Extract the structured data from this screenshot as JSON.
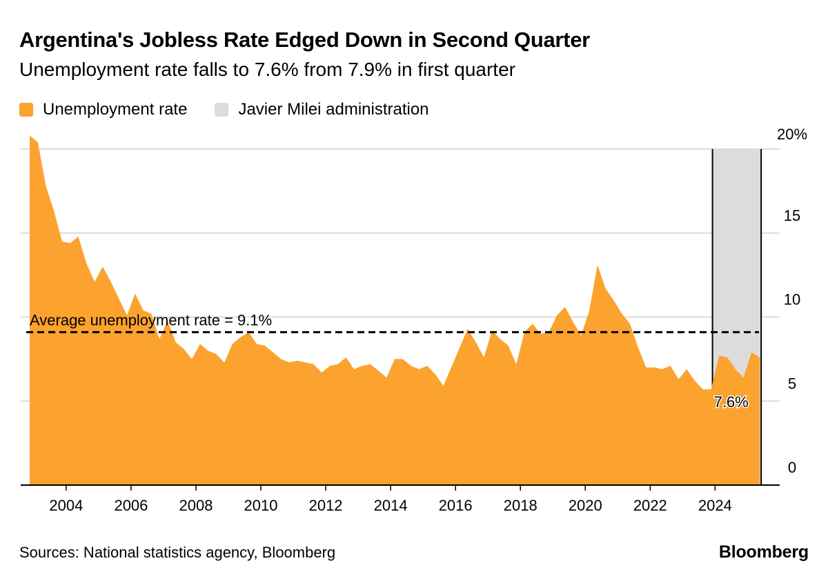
{
  "header": {
    "title": "Argentina's Jobless Rate Edged Down in Second Quarter",
    "subtitle": "Unemployment rate falls to 7.6% from 7.9% in first quarter"
  },
  "legend": {
    "series_label": "Unemployment rate",
    "shade_label": "Javier Milei administration"
  },
  "footer": {
    "source": "Sources: National statistics agency, Bloomberg",
    "brand": "Bloomberg"
  },
  "colors": {
    "series": "#fba22f",
    "shade": "#dcdcdc",
    "grid": "#cfcfcf",
    "text": "#000000"
  },
  "chart_data": {
    "type": "area",
    "title": "Argentina's Jobless Rate Edged Down in Second Quarter",
    "xlabel": "",
    "ylabel": "",
    "xlim": [
      2002.75,
      2025.5
    ],
    "ylim": [
      0,
      20
    ],
    "y_ticks": [
      0,
      5,
      10,
      15,
      20
    ],
    "y_tick_labels": [
      "0",
      "5",
      "10",
      "15",
      "20%"
    ],
    "x_ticks": [
      2004,
      2006,
      2008,
      2010,
      2012,
      2014,
      2016,
      2018,
      2020,
      2022,
      2024
    ],
    "x_tick_labels": [
      "2004",
      "2006",
      "2008",
      "2010",
      "2012",
      "2014",
      "2016",
      "2018",
      "2020",
      "2022",
      "2024"
    ],
    "grid": true,
    "series": [
      {
        "name": "Unemployment rate",
        "x": [
          2002.875,
          2003.125,
          2003.375,
          2003.625,
          2003.875,
          2004.125,
          2004.375,
          2004.625,
          2004.875,
          2005.125,
          2005.375,
          2005.625,
          2005.875,
          2006.125,
          2006.375,
          2006.625,
          2006.875,
          2007.125,
          2007.375,
          2007.625,
          2007.875,
          2008.125,
          2008.375,
          2008.625,
          2008.875,
          2009.125,
          2009.375,
          2009.625,
          2009.875,
          2010.125,
          2010.375,
          2010.625,
          2010.875,
          2011.125,
          2011.375,
          2011.625,
          2011.875,
          2012.125,
          2012.375,
          2012.625,
          2012.875,
          2013.125,
          2013.375,
          2013.625,
          2013.875,
          2014.125,
          2014.375,
          2014.625,
          2014.875,
          2015.125,
          2015.375,
          2015.625,
          2016.375,
          2016.625,
          2016.875,
          2017.125,
          2017.375,
          2017.625,
          2017.875,
          2018.125,
          2018.375,
          2018.625,
          2018.875,
          2019.125,
          2019.375,
          2019.625,
          2019.875,
          2020.125,
          2020.375,
          2020.625,
          2020.875,
          2021.125,
          2021.375,
          2021.625,
          2021.875,
          2022.125,
          2022.375,
          2022.625,
          2022.875,
          2023.125,
          2023.375,
          2023.625,
          2023.875,
          2024.125,
          2024.375,
          2024.625,
          2024.875,
          2025.125,
          2025.375
        ],
        "values": [
          20.8,
          20.4,
          17.8,
          16.3,
          14.5,
          14.4,
          14.8,
          13.2,
          12.1,
          13.0,
          12.1,
          11.1,
          10.1,
          11.4,
          10.4,
          10.2,
          8.7,
          9.8,
          8.5,
          8.1,
          7.5,
          8.4,
          8.0,
          7.8,
          7.3,
          8.4,
          8.8,
          9.1,
          8.4,
          8.3,
          7.9,
          7.5,
          7.3,
          7.4,
          7.3,
          7.2,
          6.7,
          7.1,
          7.2,
          7.6,
          6.9,
          7.1,
          7.2,
          6.8,
          6.4,
          7.5,
          7.5,
          7.1,
          6.9,
          7.1,
          6.6,
          5.9,
          9.3,
          8.5,
          7.6,
          9.2,
          8.7,
          8.3,
          7.2,
          9.1,
          9.6,
          9.0,
          9.1,
          10.1,
          10.6,
          9.7,
          8.9,
          10.4,
          13.1,
          11.7,
          11.0,
          10.2,
          9.6,
          8.2,
          7.0,
          7.0,
          6.9,
          7.1,
          6.3,
          6.9,
          6.2,
          5.7,
          5.7,
          7.7,
          7.6,
          6.9,
          6.4,
          7.9,
          7.6
        ]
      }
    ],
    "shaded_region": {
      "label": "Javier Milei administration",
      "x_start": 2023.92,
      "x_end": 2025.42
    },
    "reference_line": {
      "label": "Average unemployment rate = 9.1%",
      "value": 9.1
    },
    "annotation": {
      "text": "7.6%",
      "x": 2025.375,
      "y": 7.6
    }
  }
}
